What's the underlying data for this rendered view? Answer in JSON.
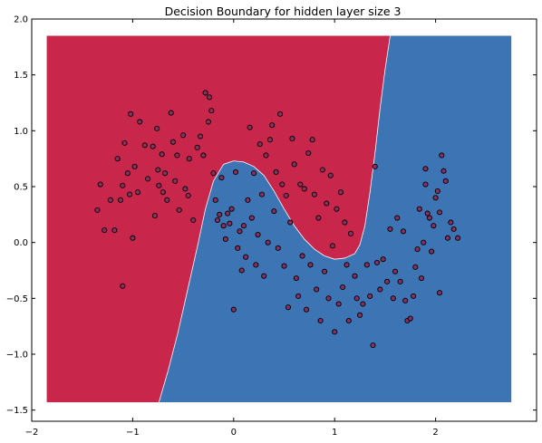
{
  "chart_data": {
    "type": "scatter",
    "title": "Decision Boundary for hidden layer size 3",
    "xlabel": "",
    "ylabel": "",
    "xlim": [
      -2.0,
      3.0
    ],
    "ylim": [
      -1.6,
      2.0
    ],
    "x_ticks": [
      -2,
      -1,
      0,
      1,
      2
    ],
    "x_tick_labels": [
      "−2",
      "−1",
      "0",
      "1",
      "2"
    ],
    "y_ticks": [
      -1.5,
      -1.0,
      -0.5,
      0.0,
      0.5,
      1.0,
      1.5,
      2.0
    ],
    "y_tick_labels": [
      "−1.5",
      "−1.0",
      "−0.5",
      "0.0",
      "0.5",
      "1.0",
      "1.5",
      "2.0"
    ],
    "grid": false,
    "region_extent": {
      "x": [
        -1.85,
        2.75
      ],
      "y": [
        -1.43,
        1.85
      ]
    },
    "regions": [
      {
        "class": 0,
        "color": "#c8264a"
      },
      {
        "class": 1,
        "color": "#3c74b4"
      }
    ],
    "decision_boundary": [
      [
        1.55,
        1.85
      ],
      [
        1.5,
        1.55
      ],
      [
        1.45,
        1.2
      ],
      [
        1.4,
        0.8
      ],
      [
        1.35,
        0.45
      ],
      [
        1.3,
        0.15
      ],
      [
        1.25,
        -0.02
      ],
      [
        1.2,
        -0.1
      ],
      [
        1.1,
        -0.14
      ],
      [
        1.0,
        -0.15
      ],
      [
        0.9,
        -0.12
      ],
      [
        0.8,
        -0.06
      ],
      [
        0.7,
        0.03
      ],
      [
        0.6,
        0.15
      ],
      [
        0.5,
        0.3
      ],
      [
        0.4,
        0.46
      ],
      [
        0.3,
        0.6
      ],
      [
        0.2,
        0.68
      ],
      [
        0.1,
        0.72
      ],
      [
        0.0,
        0.73
      ],
      [
        -0.1,
        0.7
      ],
      [
        -0.2,
        0.55
      ],
      [
        -0.28,
        0.3
      ],
      [
        -0.35,
        0.0
      ],
      [
        -0.45,
        -0.4
      ],
      [
        -0.55,
        -0.8
      ],
      [
        -0.65,
        -1.15
      ],
      [
        -0.74,
        -1.43
      ]
    ],
    "marker": {
      "fill": "#8a3060",
      "stroke": "#000000"
    },
    "points": [
      [
        -1.35,
        0.29
      ],
      [
        -1.32,
        0.52
      ],
      [
        -1.28,
        0.11
      ],
      [
        -1.22,
        0.38
      ],
      [
        -1.18,
        0.11
      ],
      [
        -1.15,
        0.75
      ],
      [
        -1.12,
        0.38
      ],
      [
        -1.1,
        -0.39
      ],
      [
        -1.1,
        0.51
      ],
      [
        -1.08,
        0.89
      ],
      [
        -1.05,
        0.62
      ],
      [
        -1.03,
        0.43
      ],
      [
        -1.02,
        1.15
      ],
      [
        -1.0,
        0.04
      ],
      [
        -0.98,
        0.68
      ],
      [
        -0.95,
        0.45
      ],
      [
        -0.93,
        1.08
      ],
      [
        -0.88,
        0.87
      ],
      [
        -0.85,
        0.57
      ],
      [
        -0.8,
        0.86
      ],
      [
        -0.78,
        0.24
      ],
      [
        -0.76,
        1.02
      ],
      [
        -0.75,
        0.65
      ],
      [
        -0.74,
        0.51
      ],
      [
        -0.71,
        0.79
      ],
      [
        -0.7,
        0.45
      ],
      [
        -0.68,
        0.62
      ],
      [
        -0.66,
        0.38
      ],
      [
        -0.62,
        1.16
      ],
      [
        -0.6,
        0.9
      ],
      [
        -0.58,
        0.55
      ],
      [
        -0.56,
        0.78
      ],
      [
        -0.54,
        0.29
      ],
      [
        -0.5,
        0.96
      ],
      [
        -0.48,
        0.48
      ],
      [
        -0.45,
        0.42
      ],
      [
        -0.44,
        0.75
      ],
      [
        -0.4,
        0.2
      ],
      [
        -0.36,
        0.85
      ],
      [
        -0.33,
        0.95
      ],
      [
        -0.3,
        0.78
      ],
      [
        -0.28,
        1.34
      ],
      [
        -0.25,
        1.08
      ],
      [
        -0.24,
        1.3
      ],
      [
        -0.22,
        1.18
      ],
      [
        -0.2,
        0.62
      ],
      [
        -0.18,
        0.38
      ],
      [
        -0.16,
        0.2
      ],
      [
        -0.14,
        0.25
      ],
      [
        -0.12,
        0.58
      ],
      [
        -0.1,
        0.15
      ],
      [
        -0.08,
        0.03
      ],
      [
        -0.06,
        0.26
      ],
      [
        -0.04,
        0.17
      ],
      [
        -0.02,
        0.3
      ],
      [
        0.0,
        -0.6
      ],
      [
        0.02,
        0.63
      ],
      [
        0.04,
        -0.05
      ],
      [
        0.06,
        0.1
      ],
      [
        0.08,
        -0.25
      ],
      [
        0.1,
        0.15
      ],
      [
        0.12,
        -0.13
      ],
      [
        0.14,
        0.38
      ],
      [
        0.16,
        1.03
      ],
      [
        0.18,
        0.22
      ],
      [
        0.2,
        0.62
      ],
      [
        0.22,
        -0.2
      ],
      [
        0.24,
        0.07
      ],
      [
        0.26,
        0.88
      ],
      [
        0.28,
        0.43
      ],
      [
        0.3,
        -0.3
      ],
      [
        0.32,
        0.78
      ],
      [
        0.34,
        0.0
      ],
      [
        0.36,
        0.92
      ],
      [
        0.38,
        1.05
      ],
      [
        0.4,
        0.28
      ],
      [
        0.42,
        0.63
      ],
      [
        0.44,
        -0.05
      ],
      [
        0.46,
        1.15
      ],
      [
        0.48,
        0.52
      ],
      [
        0.5,
        -0.21
      ],
      [
        0.52,
        0.42
      ],
      [
        0.54,
        -0.58
      ],
      [
        0.56,
        0.18
      ],
      [
        0.58,
        0.93
      ],
      [
        0.6,
        0.7
      ],
      [
        0.62,
        -0.32
      ],
      [
        0.64,
        -0.48
      ],
      [
        0.66,
        0.52
      ],
      [
        0.68,
        -0.12
      ],
      [
        0.7,
        0.48
      ],
      [
        0.72,
        -0.6
      ],
      [
        0.74,
        0.8
      ],
      [
        0.76,
        -0.2
      ],
      [
        0.78,
        0.92
      ],
      [
        0.8,
        0.43
      ],
      [
        0.82,
        -0.42
      ],
      [
        0.84,
        0.22
      ],
      [
        0.86,
        -0.7
      ],
      [
        0.88,
        0.65
      ],
      [
        0.9,
        -0.26
      ],
      [
        0.92,
        0.35
      ],
      [
        0.94,
        -0.5
      ],
      [
        0.96,
        0.6
      ],
      [
        0.98,
        -0.03
      ],
      [
        1.0,
        -0.8
      ],
      [
        1.02,
        0.3
      ],
      [
        1.04,
        -0.55
      ],
      [
        1.06,
        0.45
      ],
      [
        1.08,
        -0.4
      ],
      [
        1.1,
        0.18
      ],
      [
        1.12,
        -0.2
      ],
      [
        1.14,
        -0.7
      ],
      [
        1.16,
        0.08
      ],
      [
        1.2,
        -0.3
      ],
      [
        1.22,
        -0.5
      ],
      [
        1.25,
        -0.65
      ],
      [
        1.28,
        -0.55
      ],
      [
        1.32,
        -0.2
      ],
      [
        1.35,
        -0.48
      ],
      [
        1.38,
        -0.92
      ],
      [
        1.4,
        0.68
      ],
      [
        1.42,
        -0.18
      ],
      [
        1.45,
        -0.42
      ],
      [
        1.48,
        -0.15
      ],
      [
        1.52,
        -0.35
      ],
      [
        1.55,
        0.12
      ],
      [
        1.58,
        -0.5
      ],
      [
        1.6,
        -0.26
      ],
      [
        1.62,
        0.22
      ],
      [
        1.65,
        -0.35
      ],
      [
        1.68,
        0.1
      ],
      [
        1.7,
        -0.52
      ],
      [
        1.72,
        -0.7
      ],
      [
        1.75,
        -0.68
      ],
      [
        1.78,
        -0.48
      ],
      [
        1.8,
        -0.22
      ],
      [
        1.82,
        -0.06
      ],
      [
        1.84,
        0.3
      ],
      [
        1.86,
        -0.32
      ],
      [
        1.88,
        0.0
      ],
      [
        1.9,
        0.52
      ],
      [
        1.92,
        0.26
      ],
      [
        1.94,
        0.22
      ],
      [
        1.96,
        -0.08
      ],
      [
        1.98,
        0.15
      ],
      [
        2.0,
        0.4
      ],
      [
        2.02,
        0.46
      ],
      [
        2.04,
        0.27
      ],
      [
        2.06,
        0.78
      ],
      [
        2.08,
        0.64
      ],
      [
        2.1,
        0.55
      ],
      [
        2.12,
        0.04
      ],
      [
        2.15,
        0.18
      ],
      [
        2.18,
        0.12
      ],
      [
        2.22,
        0.04
      ],
      [
        2.04,
        -0.45
      ],
      [
        1.9,
        0.66
      ]
    ]
  }
}
